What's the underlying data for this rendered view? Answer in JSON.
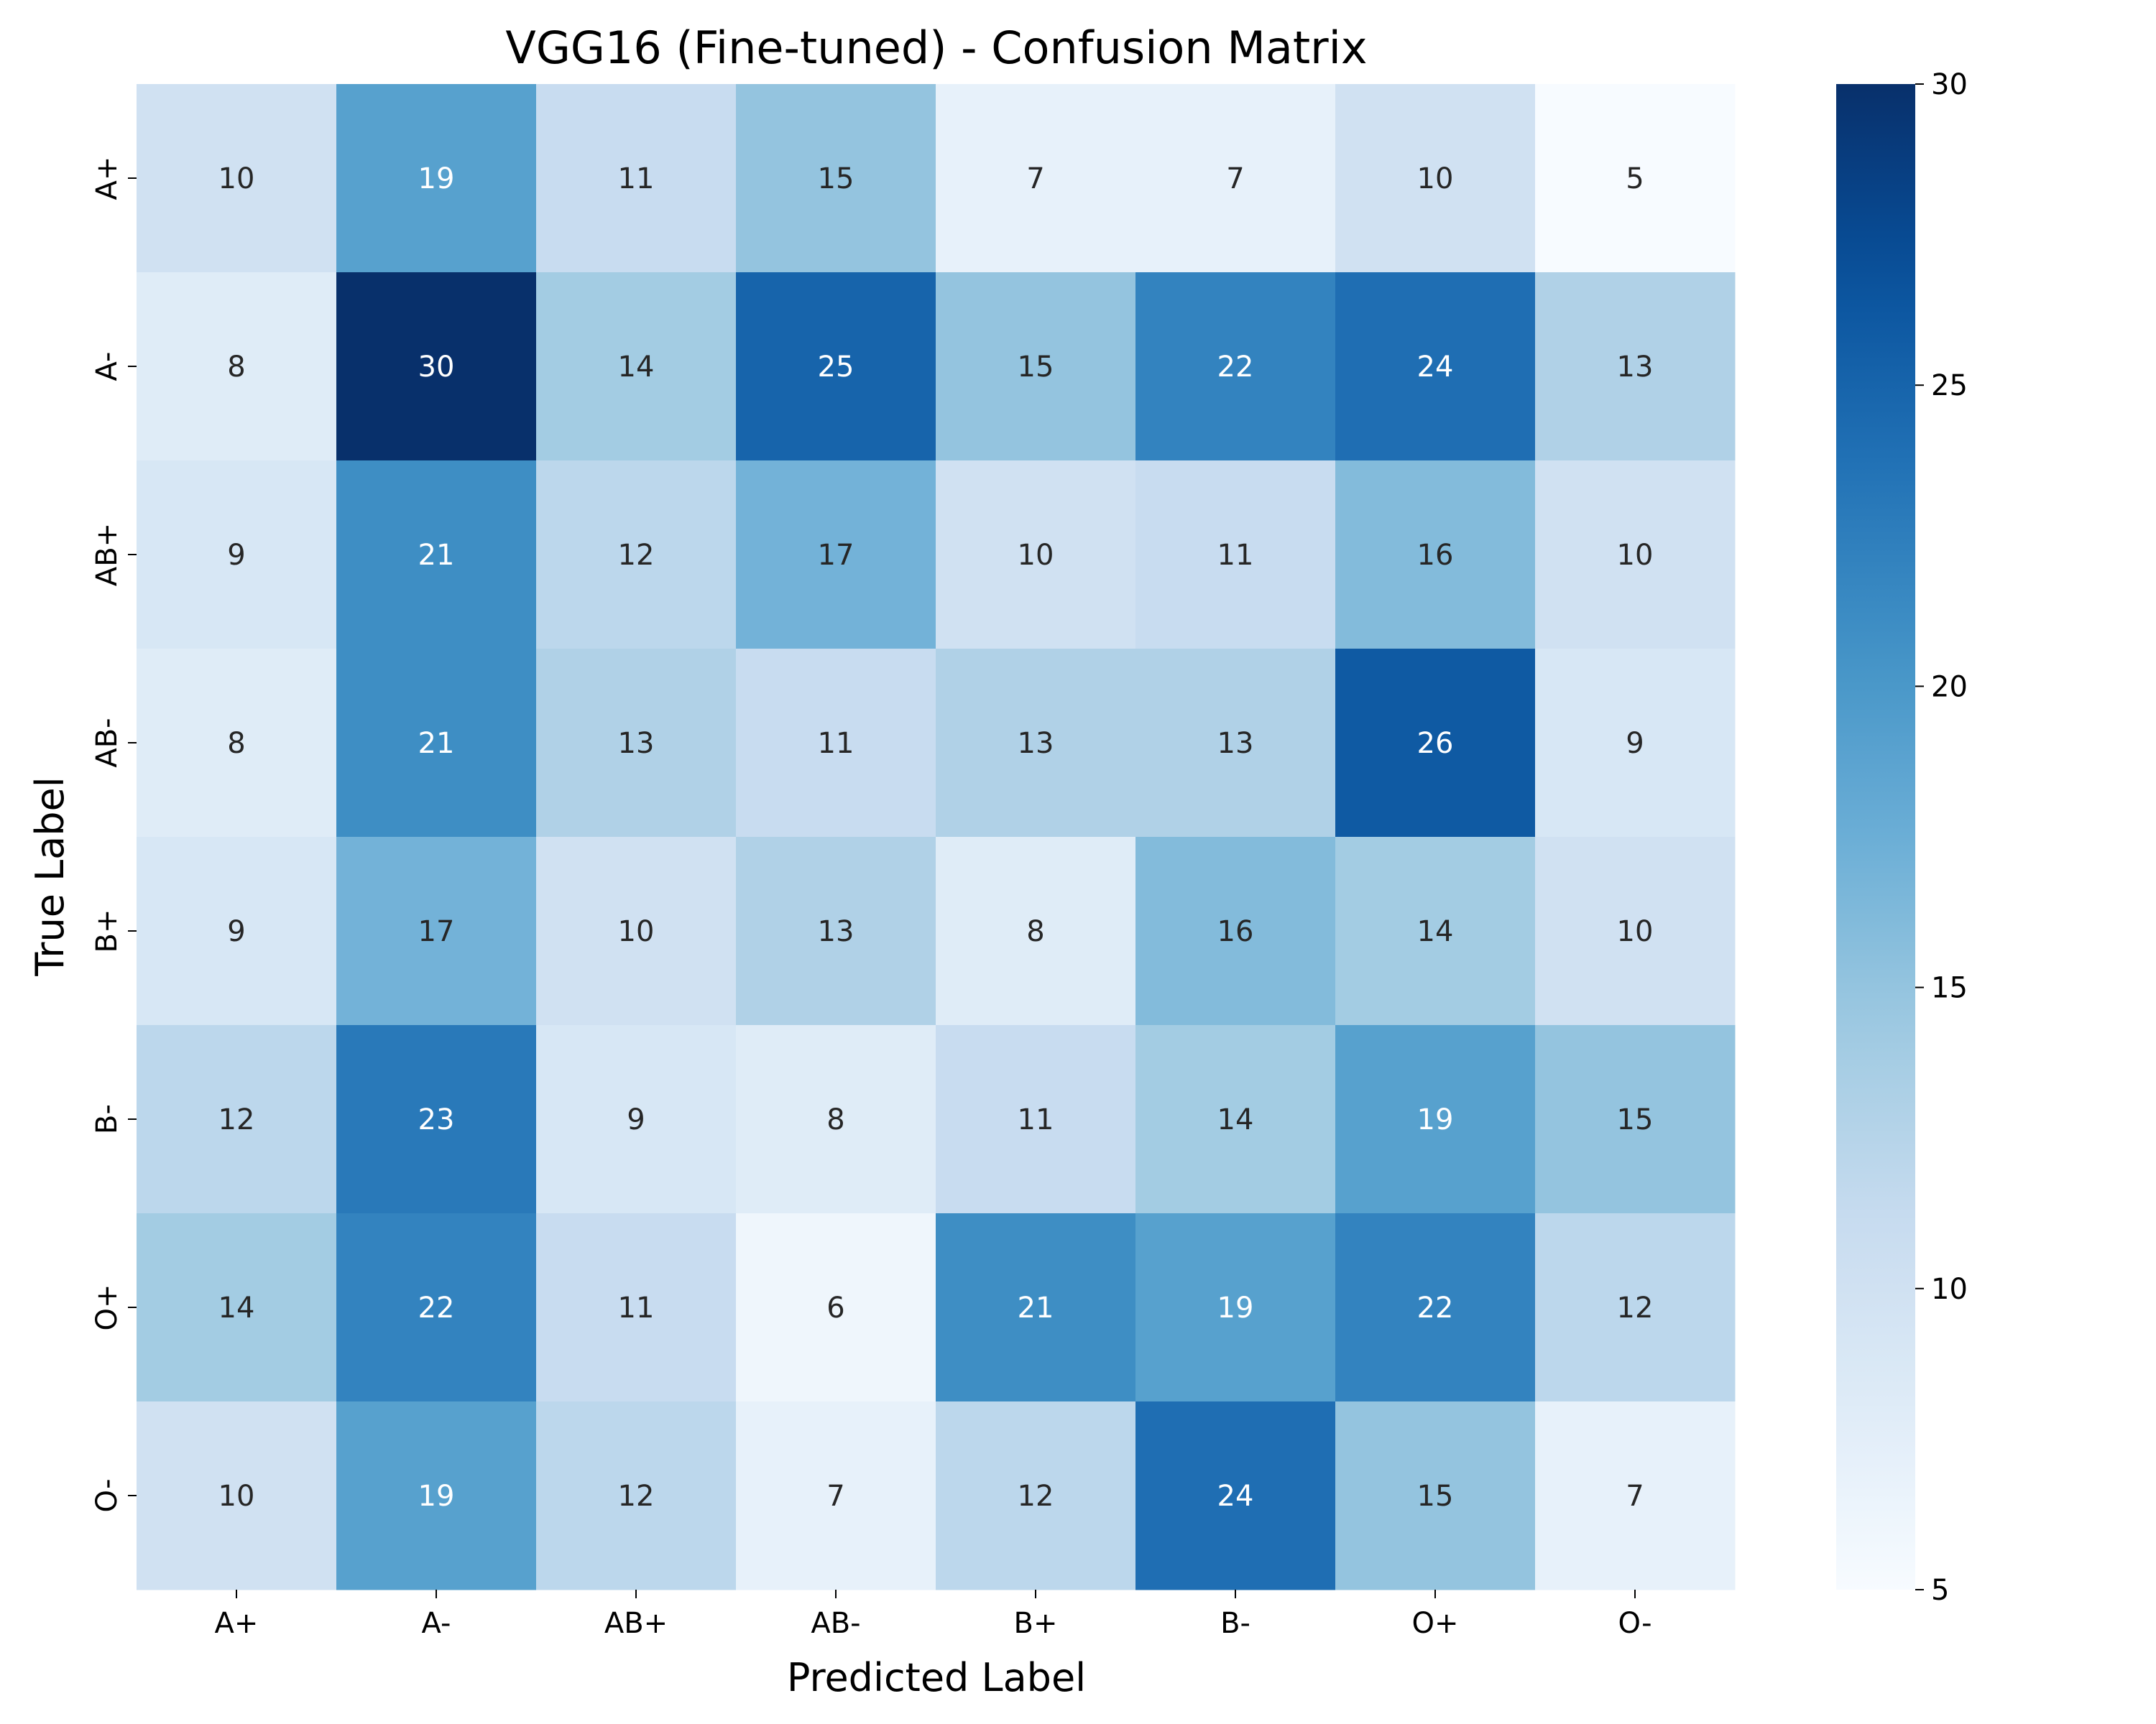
{
  "chart_data": {
    "type": "heatmap",
    "title": "VGG16 (Fine-tuned) - Confusion Matrix",
    "xlabel": "Predicted Label",
    "ylabel": "True Label",
    "x_categories": [
      "A+",
      "A-",
      "AB+",
      "AB-",
      "B+",
      "B-",
      "O+",
      "O-"
    ],
    "y_categories": [
      "A+",
      "A-",
      "AB+",
      "AB-",
      "B+",
      "B-",
      "O+",
      "O-"
    ],
    "values": [
      [
        10,
        19,
        11,
        15,
        7,
        7,
        10,
        5
      ],
      [
        8,
        30,
        14,
        25,
        15,
        22,
        24,
        13
      ],
      [
        9,
        21,
        12,
        17,
        10,
        11,
        16,
        10
      ],
      [
        8,
        21,
        13,
        11,
        13,
        13,
        26,
        9
      ],
      [
        9,
        17,
        10,
        13,
        8,
        16,
        14,
        10
      ],
      [
        12,
        23,
        9,
        8,
        11,
        14,
        19,
        15
      ],
      [
        14,
        22,
        11,
        6,
        21,
        19,
        22,
        12
      ],
      [
        10,
        19,
        12,
        7,
        12,
        24,
        15,
        7
      ]
    ],
    "colorbar": {
      "min": 5,
      "max": 30,
      "ticks": [
        5,
        10,
        15,
        20,
        25,
        30
      ]
    },
    "colormap": "Blues",
    "grid": false,
    "legend": "colorbar-right"
  }
}
